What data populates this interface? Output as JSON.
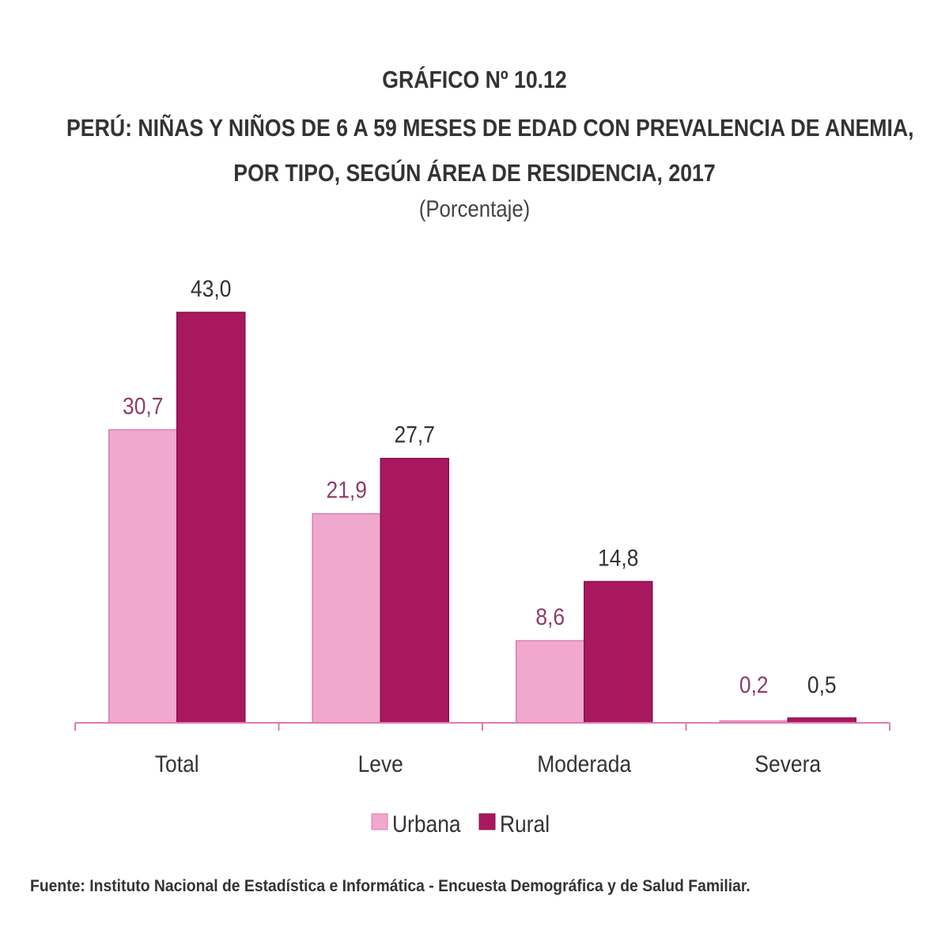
{
  "title": {
    "line1": "GRÁFICO Nº 10.12",
    "line2": "PERÚ: NIÑAS Y NIÑOS DE 6 A 59 MESES DE EDAD CON PREVALENCIA DE ANEMIA,",
    "line3": "POR TIPO, SEGÚN ÁREA DE RESIDENCIA, 2017",
    "subtitle": "(Porcentaje)"
  },
  "source": "Fuente: Instituto Nacional de Estadística e Informática - Encuesta Demográfica y de Salud Familiar.",
  "chart_data": {
    "type": "bar",
    "categories": [
      "Total",
      "Leve",
      "Moderada",
      "Severa"
    ],
    "series": [
      {
        "name": "Urbana",
        "values": [
          30.7,
          21.9,
          8.6,
          0.2
        ],
        "labels": [
          "30,7",
          "21,9",
          "8,6",
          "0,2"
        ],
        "color": "#f0a8cd",
        "stroke": "#e07ab0",
        "label_color": "#8e3d68"
      },
      {
        "name": "Rural",
        "values": [
          43.0,
          27.7,
          14.8,
          0.5
        ],
        "labels": [
          "43,0",
          "27,7",
          "14,8",
          "0,5"
        ],
        "color": "#a8185f",
        "stroke": "#8a0f4c",
        "label_color": "#333333"
      }
    ],
    "ylim": [
      0,
      50
    ],
    "grid": false,
    "legend_position": "bottom-center",
    "axis_color": "#e07ab0"
  }
}
